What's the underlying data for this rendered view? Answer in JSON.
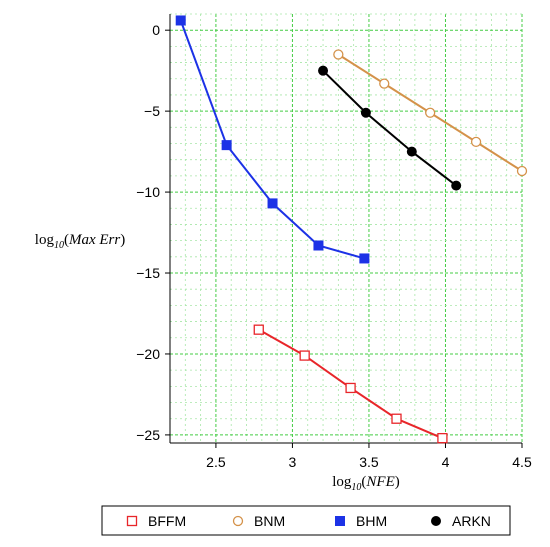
{
  "chart_data": {
    "type": "line",
    "xlabel": "log10(NFE)",
    "ylabel": "log10(Max Err)",
    "xlim": [
      2.2,
      4.5
    ],
    "ylim": [
      -25.5,
      1.0
    ],
    "x_ticks": [
      "2.5",
      "3",
      "3.5",
      "4",
      "4.5"
    ],
    "y_ticks": [
      "0",
      "-5",
      "-10",
      "-15",
      "-20",
      "-25"
    ],
    "grid": true,
    "legend_position": "bottom",
    "series": [
      {
        "name": "BFFM",
        "color": "#e8262a",
        "marker": "open-square",
        "points": [
          [
            2.78,
            -18.5
          ],
          [
            3.08,
            -20.1
          ],
          [
            3.38,
            -22.1
          ],
          [
            3.68,
            -24.0
          ],
          [
            3.98,
            -25.2
          ]
        ]
      },
      {
        "name": "BNM",
        "color": "#d4924a",
        "marker": "open-circle",
        "points": [
          [
            3.3,
            -1.5
          ],
          [
            3.6,
            -3.3
          ],
          [
            3.9,
            -5.1
          ],
          [
            4.2,
            -6.9
          ],
          [
            4.5,
            -8.7
          ]
        ]
      },
      {
        "name": "BHM",
        "color": "#1c32e6",
        "marker": "filled-square",
        "points": [
          [
            2.27,
            0.6
          ],
          [
            2.57,
            -7.1
          ],
          [
            2.87,
            -10.7
          ],
          [
            3.17,
            -13.3
          ],
          [
            3.47,
            -14.1
          ]
        ]
      },
      {
        "name": "ARKN",
        "color": "#000000",
        "marker": "filled-circle",
        "points": [
          [
            3.2,
            -2.5
          ],
          [
            3.48,
            -5.1
          ],
          [
            3.78,
            -7.5
          ],
          [
            4.07,
            -9.6
          ]
        ]
      }
    ]
  }
}
